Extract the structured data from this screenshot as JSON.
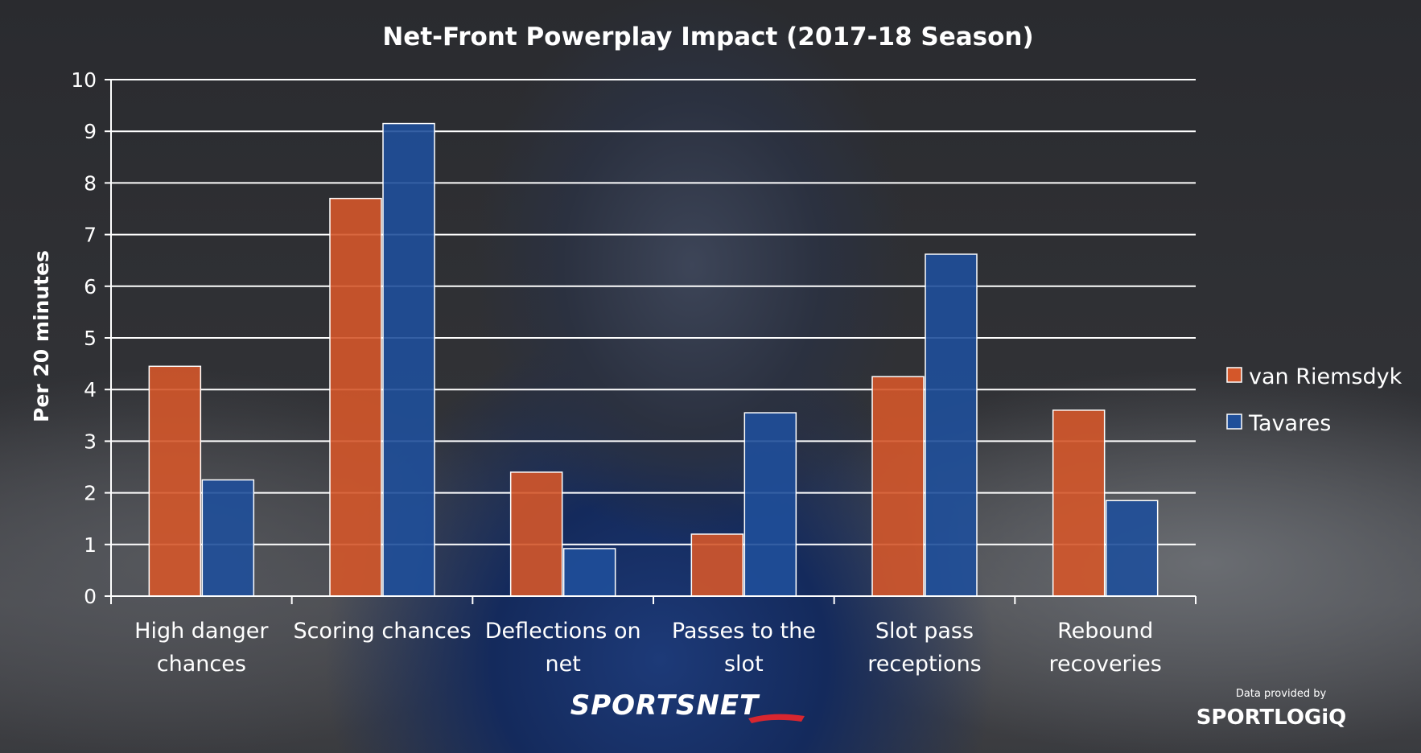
{
  "chart_data": {
    "type": "bar",
    "title": "Net-Front Powerplay Impact (2017-18 Season)",
    "xlabel": "",
    "ylabel": "Per 20 minutes",
    "ylim": [
      0,
      10
    ],
    "yticks": [
      0,
      1,
      2,
      3,
      4,
      5,
      6,
      7,
      8,
      9,
      10
    ],
    "grid": true,
    "legend_position": "right",
    "categories": [
      [
        "High danger",
        "chances"
      ],
      [
        "Scoring chances"
      ],
      [
        "Deflections on",
        "net"
      ],
      [
        "Passes to the",
        "slot"
      ],
      [
        "Slot pass",
        "receptions"
      ],
      [
        "Rebound",
        "recoveries"
      ]
    ],
    "series": [
      {
        "name": "van Riemsdyk",
        "color": "#d4572a",
        "values": [
          4.45,
          7.7,
          2.4,
          1.2,
          4.25,
          3.6
        ]
      },
      {
        "name": "Tavares",
        "color": "#1f4f9a",
        "values": [
          2.25,
          9.15,
          0.92,
          3.55,
          6.62,
          1.85
        ]
      }
    ]
  },
  "credits": {
    "network": "SPORTSNET",
    "provider_prefix": "Data provided by",
    "provider": "SPORTLOGiQ"
  }
}
